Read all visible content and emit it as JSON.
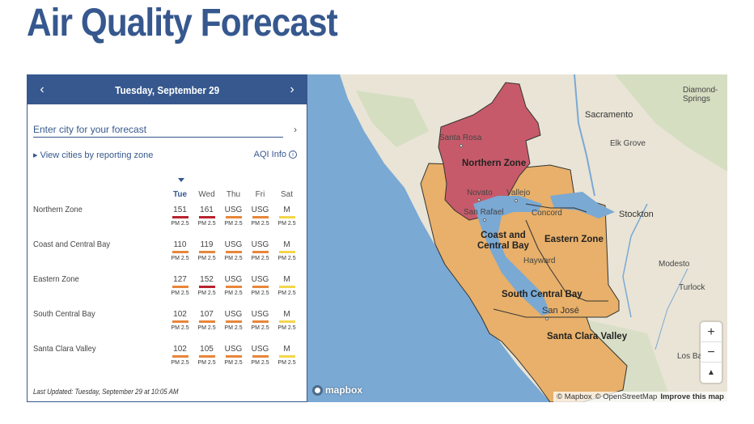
{
  "page": {
    "title": "Air Quality Forecast"
  },
  "panel": {
    "date": "Tuesday, September 29",
    "prev_icon": "chevron-left-icon",
    "next_icon": "chevron-right-icon",
    "search_placeholder": "Enter city for your forecast",
    "view_cities_label": "View cities by reporting zone",
    "aqi_info_label": "AQI Info",
    "days": [
      "Tue",
      "Wed",
      "Thu",
      "Fri",
      "Sat"
    ],
    "zones": [
      {
        "name": "Northern Zone",
        "cells": [
          {
            "value": "151",
            "pollutant": "PM 2.5",
            "color": "#b8232f"
          },
          {
            "value": "161",
            "pollutant": "PM 2.5",
            "color": "#b8232f"
          },
          {
            "value": "USG",
            "pollutant": "PM 2.5",
            "color": "#e8863a"
          },
          {
            "value": "USG",
            "pollutant": "PM 2.5",
            "color": "#e8863a"
          },
          {
            "value": "M",
            "pollutant": "PM 2.5",
            "color": "#f2d64b"
          }
        ]
      },
      {
        "name": "Coast and Central Bay",
        "cells": [
          {
            "value": "110",
            "pollutant": "PM 2.5",
            "color": "#e8863a"
          },
          {
            "value": "119",
            "pollutant": "PM 2.5",
            "color": "#e8863a"
          },
          {
            "value": "USG",
            "pollutant": "PM 2.5",
            "color": "#e8863a"
          },
          {
            "value": "USG",
            "pollutant": "PM 2.5",
            "color": "#e8863a"
          },
          {
            "value": "M",
            "pollutant": "PM 2.5",
            "color": "#f2d64b"
          }
        ]
      },
      {
        "name": "Eastern Zone",
        "cells": [
          {
            "value": "127",
            "pollutant": "PM 2.5",
            "color": "#e8863a"
          },
          {
            "value": "152",
            "pollutant": "PM 2.5",
            "color": "#b8232f"
          },
          {
            "value": "USG",
            "pollutant": "PM 2.5",
            "color": "#e8863a"
          },
          {
            "value": "USG",
            "pollutant": "PM 2.5",
            "color": "#e8863a"
          },
          {
            "value": "M",
            "pollutant": "PM 2.5",
            "color": "#f2d64b"
          }
        ]
      },
      {
        "name": "South Central Bay",
        "cells": [
          {
            "value": "102",
            "pollutant": "PM 2.5",
            "color": "#e8863a"
          },
          {
            "value": "107",
            "pollutant": "PM 2.5",
            "color": "#e8863a"
          },
          {
            "value": "USG",
            "pollutant": "PM 2.5",
            "color": "#e8863a"
          },
          {
            "value": "USG",
            "pollutant": "PM 2.5",
            "color": "#e8863a"
          },
          {
            "value": "M",
            "pollutant": "PM 2.5",
            "color": "#f2d64b"
          }
        ]
      },
      {
        "name": "Santa Clara Valley",
        "cells": [
          {
            "value": "102",
            "pollutant": "PM 2.5",
            "color": "#e8863a"
          },
          {
            "value": "105",
            "pollutant": "PM 2.5",
            "color": "#e8863a"
          },
          {
            "value": "USG",
            "pollutant": "PM 2.5",
            "color": "#e8863a"
          },
          {
            "value": "USG",
            "pollutant": "PM 2.5",
            "color": "#e8863a"
          },
          {
            "value": "M",
            "pollutant": "PM 2.5",
            "color": "#f2d64b"
          }
        ]
      }
    ],
    "last_updated": "Last Updated: Tuesday, September 29 at 10:05 AM"
  },
  "map": {
    "zone_colors": {
      "unhealthy": "#c75a6a",
      "usg": "#e8b06a"
    },
    "labels": {
      "diamond_springs": "Diamond-\nSprings",
      "sacramento": "Sacramento",
      "elk_grove": "Elk Grove",
      "santa_rosa": "Santa Rosa",
      "northern_zone": "Northern Zone",
      "novato": "Novato",
      "vallejo": "Vallejo",
      "san_rafael": "San Rafael",
      "concord": "Concord",
      "stockton": "Stockton",
      "coast_central_bay": "Coast and\nCentral Bay",
      "eastern_zone": "Eastern Zone",
      "hayward": "Hayward",
      "modesto": "Modesto",
      "turlock": "Turlock",
      "south_central_bay": "South Central Bay",
      "san_jose": "San José",
      "santa_clara_valley": "Santa Clara Valley",
      "los_banos": "Los Ban"
    },
    "zoom_in": "+",
    "zoom_out": "−",
    "compass": "▲",
    "logo_text": "mapbox",
    "attribution": [
      "© Mapbox",
      "© OpenStreetMap",
      "Improve this map"
    ]
  }
}
